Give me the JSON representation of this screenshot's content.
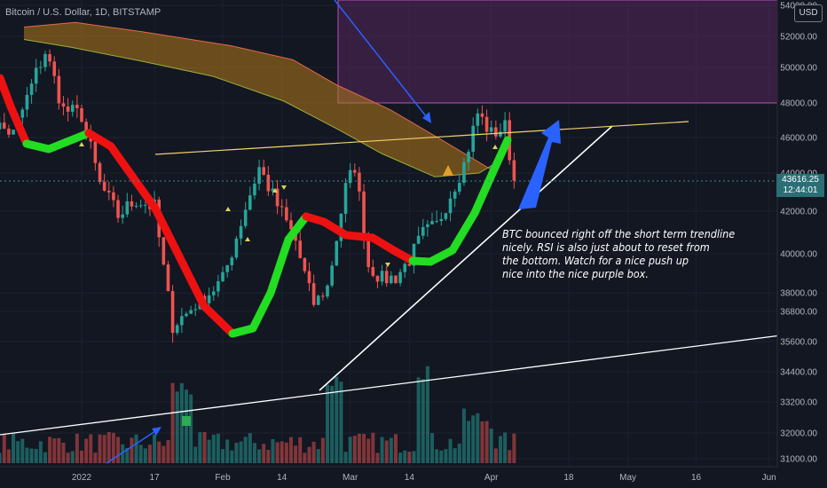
{
  "header": {
    "title": "Bitcoin / U.S. Dollar, 1D, BITSTAMP"
  },
  "currency_badge": "USD",
  "current_price": {
    "value": "43616.25",
    "countdown": "12:44:01"
  },
  "annotation": {
    "lines": [
      "BTC bounced right off the short term trendline",
      "nicely. RSI is also just about to reset from",
      "the bottom. Watch for a nice push up",
      "nice into the nice purple box."
    ]
  },
  "colors": {
    "background": "#131722",
    "up": "#26a69a",
    "down": "#ef5350",
    "ma_up": "#22dd22",
    "ma_down": "#ee1111",
    "cloud": "#b57a1a",
    "purple_box": "#7a2f7e",
    "trendline": "#ffffff",
    "resistance": "#f2d36b",
    "arrow": "#2a62ff"
  },
  "chart_data": {
    "type": "candlestick",
    "symbol": "Bitcoin / U.S. Dollar",
    "interval": "1D",
    "exchange": "BITSTAMP",
    "y_ticks": [
      31000,
      32000,
      33200,
      34400,
      35600,
      36800,
      38000,
      40000,
      42000,
      44000,
      46000,
      48000,
      50000,
      52000,
      54000
    ],
    "y_tick_labels": [
      "31000.00",
      "32000.00",
      "33200.00",
      "34400.00",
      "35600.00",
      "36800.00",
      "38000.00",
      "40000.00",
      "42000.00",
      "44000.00",
      "46000.00",
      "48000.00",
      "50000.00",
      "52000.00",
      "54000.00"
    ],
    "x_ticks": [
      {
        "label": "2022",
        "date": "2022-01-01"
      },
      {
        "label": "17",
        "date": "2022-01-17"
      },
      {
        "label": "Feb",
        "date": "2022-02-01"
      },
      {
        "label": "14",
        "date": "2022-02-14"
      },
      {
        "label": "Mar",
        "date": "2022-03-01"
      },
      {
        "label": "14",
        "date": "2022-03-14"
      },
      {
        "label": "Apr",
        "date": "2022-04-01"
      },
      {
        "label": "18",
        "date": "2022-04-18"
      },
      {
        "label": "May",
        "date": "2022-05-01"
      },
      {
        "label": "16",
        "date": "2022-05-16"
      },
      {
        "label": "Jun",
        "date": "2022-06-01"
      }
    ],
    "closes": [
      {
        "date": "2021-12-10",
        "close": 47200
      },
      {
        "date": "2021-12-17",
        "close": 46200
      },
      {
        "date": "2021-12-24",
        "close": 51000
      },
      {
        "date": "2021-12-28",
        "close": 47600
      },
      {
        "date": "2022-01-01",
        "close": 47300
      },
      {
        "date": "2022-01-05",
        "close": 43400
      },
      {
        "date": "2022-01-09",
        "close": 41800
      },
      {
        "date": "2022-01-13",
        "close": 42600
      },
      {
        "date": "2022-01-17",
        "close": 42200
      },
      {
        "date": "2022-01-21",
        "close": 36300
      },
      {
        "date": "2022-01-24",
        "close": 36700
      },
      {
        "date": "2022-01-28",
        "close": 37700
      },
      {
        "date": "2022-02-01",
        "close": 38700
      },
      {
        "date": "2022-02-05",
        "close": 41500
      },
      {
        "date": "2022-02-09",
        "close": 44300
      },
      {
        "date": "2022-02-13",
        "close": 42300
      },
      {
        "date": "2022-02-17",
        "close": 40600
      },
      {
        "date": "2022-02-21",
        "close": 37300
      },
      {
        "date": "2022-02-24",
        "close": 38300
      },
      {
        "date": "2022-02-28",
        "close": 43200
      },
      {
        "date": "2022-03-02",
        "close": 44400
      },
      {
        "date": "2022-03-05",
        "close": 39400
      },
      {
        "date": "2022-03-08",
        "close": 38700
      },
      {
        "date": "2022-03-11",
        "close": 38800
      },
      {
        "date": "2022-03-14",
        "close": 39700
      },
      {
        "date": "2022-03-17",
        "close": 40900
      },
      {
        "date": "2022-03-20",
        "close": 41300
      },
      {
        "date": "2022-03-23",
        "close": 42900
      },
      {
        "date": "2022-03-26",
        "close": 44500
      },
      {
        "date": "2022-03-29",
        "close": 47400
      },
      {
        "date": "2022-04-01",
        "close": 46200
      },
      {
        "date": "2022-04-04",
        "close": 46600
      },
      {
        "date": "2022-04-06",
        "close": 43600
      }
    ]
  }
}
